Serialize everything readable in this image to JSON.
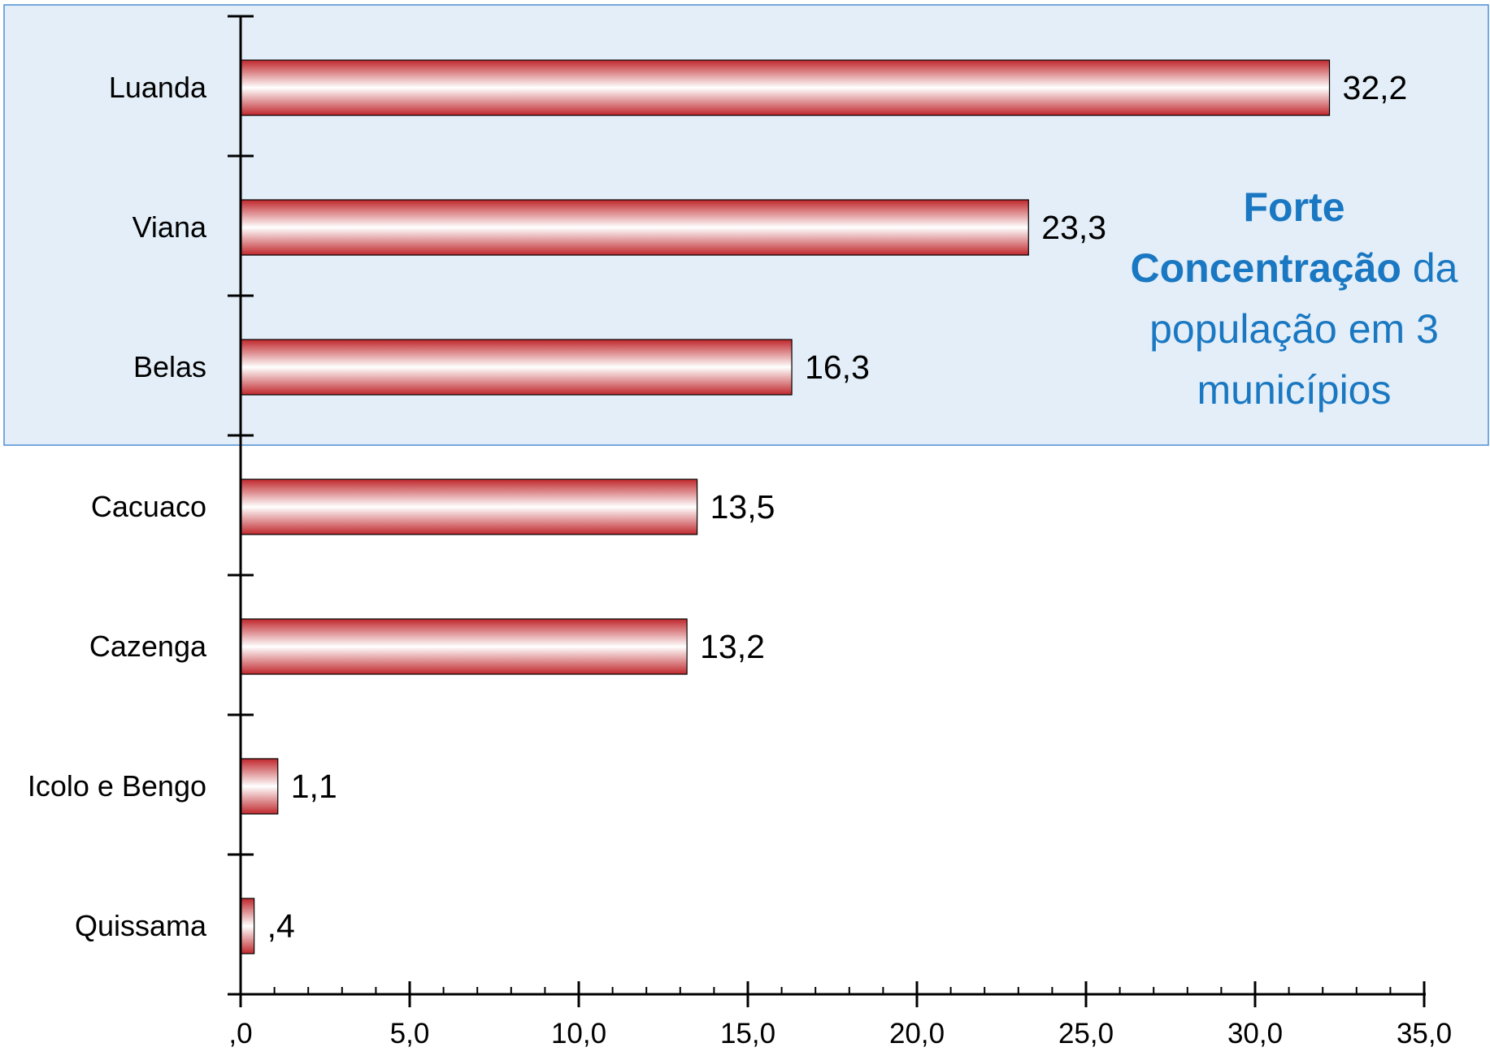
{
  "chart_data": {
    "type": "bar",
    "orientation": "horizontal",
    "categories": [
      "Luanda",
      "Viana",
      "Belas",
      "Cacuaco",
      "Cazenga",
      "Icolo e Bengo",
      "Quissama"
    ],
    "values": [
      32.2,
      23.3,
      16.3,
      13.5,
      13.2,
      1.1,
      0.4
    ],
    "value_labels": [
      "32,2",
      "23,3",
      "16,3",
      "13,5",
      "13,2",
      "1,1",
      ",4"
    ],
    "xlim": [
      0,
      35
    ],
    "x_ticks": [
      0,
      5,
      10,
      15,
      20,
      25,
      30,
      35
    ],
    "x_tick_labels": [
      ",0",
      "5,0",
      "10,0",
      "15,0",
      "20,0",
      "25,0",
      "30,0",
      "35,0"
    ],
    "x_minor_step": 1,
    "highlighted_categories": [
      "Luanda",
      "Viana",
      "Belas"
    ],
    "grid": false,
    "legend": "none"
  },
  "annotation": {
    "line1_bold": "Forte",
    "line2_bold": "Concentração",
    "line2_rest": " da",
    "line3": "população em 3",
    "line4": "municípios"
  },
  "colors": {
    "bar_edge": "#c0282d",
    "bar_center": "#ffffff",
    "highlight_fill": "#e3eef8",
    "highlight_border": "#4f8fd3",
    "annotation_text": "#1a78c2",
    "axis": "#000000"
  }
}
